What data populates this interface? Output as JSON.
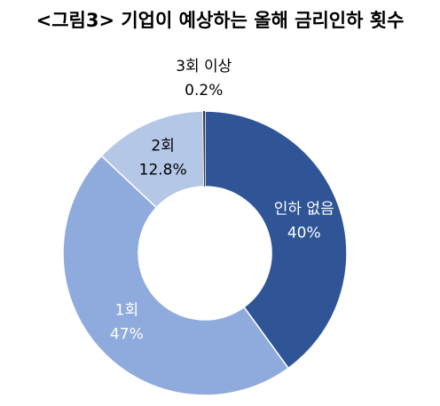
{
  "chart_data": {
    "type": "donut",
    "title": "<그림3> 기업이 예상하는 올해 금리인하 횟수",
    "categories": [
      "인하 없음",
      "1회",
      "2회",
      "3회 이상"
    ],
    "values": [
      40,
      47,
      12.8,
      0.2
    ],
    "value_labels": [
      "40%",
      "47%",
      "12.8%",
      "0.2%"
    ],
    "colors": [
      "#2f5597",
      "#8faadc",
      "#b4c7e7",
      "#3a3a3a"
    ],
    "label_colors": [
      "#ffffff",
      "#ffffff",
      "#000000",
      "#000000"
    ]
  }
}
